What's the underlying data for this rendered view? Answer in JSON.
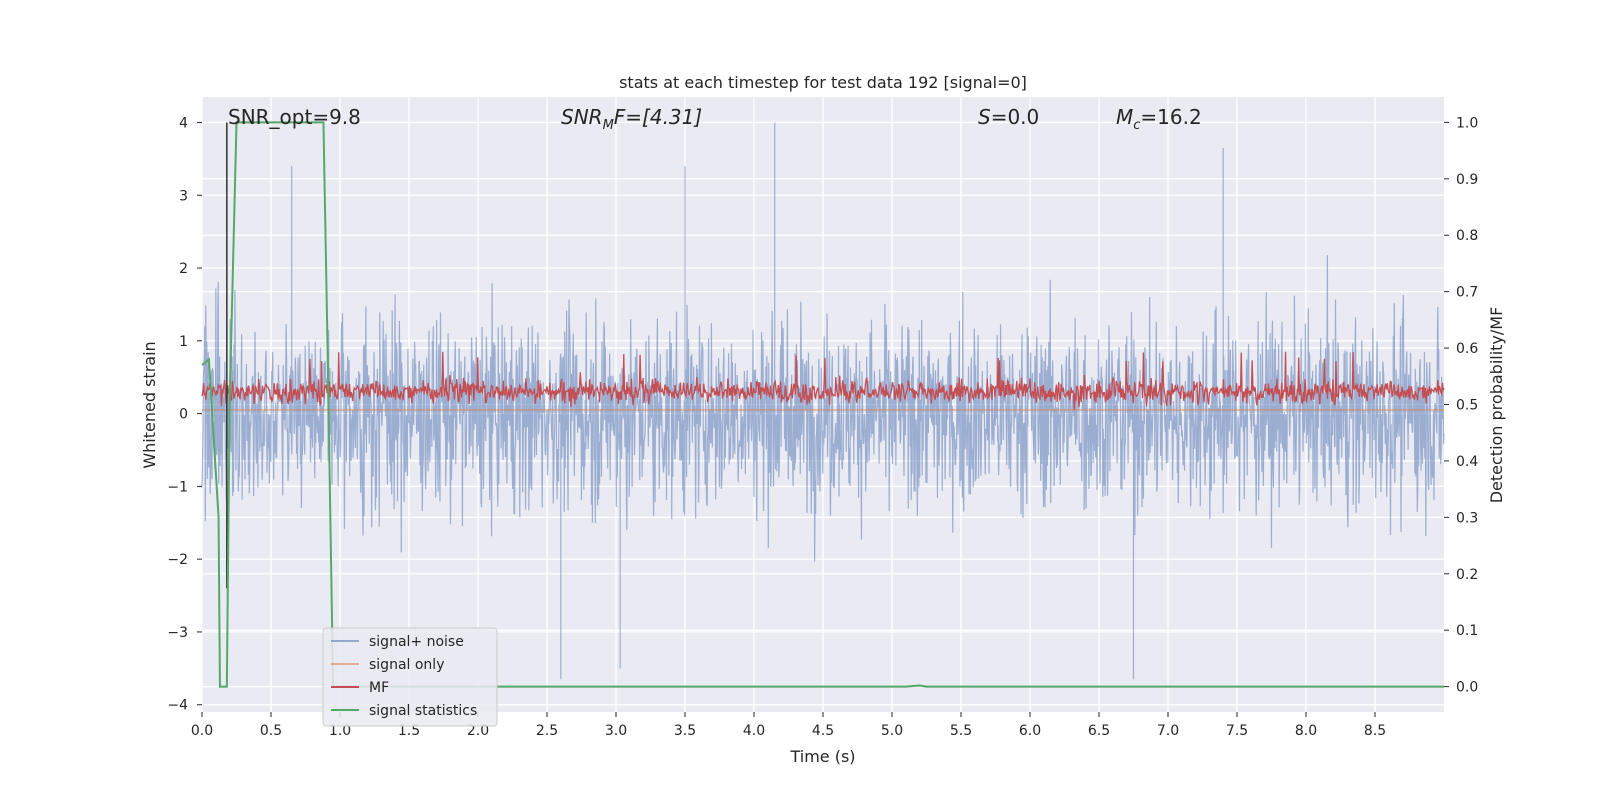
{
  "chart_data": {
    "type": "line",
    "title": "stats at each timestep for test data 192 [signal=0]",
    "xlabel": "Time (s)",
    "ylabel": "Whitened strain",
    "ylabel_right": "Detection probability/MF",
    "xlim": [
      0.0,
      9.0
    ],
    "ylim": [
      -4.1,
      4.35
    ],
    "ylim_right": [
      -0.045,
      1.045
    ],
    "xticks": [
      "0.0",
      "0.5",
      "1.0",
      "1.5",
      "2.0",
      "2.5",
      "3.0",
      "3.5",
      "4.0",
      "4.5",
      "5.0",
      "5.5",
      "6.0",
      "6.5",
      "7.0",
      "7.5",
      "8.0",
      "8.5"
    ],
    "yticks_left": [
      "4",
      "3",
      "2",
      "1",
      "0",
      "−1",
      "−2",
      "−3",
      "−4"
    ],
    "yticks_right": [
      "1.0",
      "0.9",
      "0.8",
      "0.7",
      "0.6",
      "0.5",
      "0.4",
      "0.3",
      "0.2",
      "0.1",
      "0.0"
    ],
    "annotations": {
      "snr_opt": "SNR_opt=9.8",
      "snr_mf_prefix": "SNR",
      "snr_mf_sub": "M",
      "snr_mf_suffix": "F=[4.31]",
      "s_var": "S",
      "s_value": "=0.0",
      "mc_var": "M",
      "mc_sub": "c",
      "mc_value": "=16.2"
    },
    "legend": {
      "placement": "lower-left",
      "entries": [
        "signal+ noise",
        "signal only",
        "MF",
        "signal statistics"
      ]
    },
    "series": [
      {
        "name": "signal+ noise",
        "color": "#4c72b0",
        "description": "whitened strain noise, roughly symmetric between -2.5 and 2.5 with spikes to +4.0 (t≈4.15) and -3.65 (t≈6.75)",
        "peak_max": 4.0,
        "peak_min": -3.65
      },
      {
        "name": "signal only",
        "color": "#dd8452",
        "values_constant": 0.05
      },
      {
        "name": "MF",
        "color": "#c44e52",
        "range": [
          0.0,
          0.85
        ]
      },
      {
        "name": "signal statistics",
        "color": "#55a868",
        "axis": "right",
        "points": [
          [
            0.0,
            0.57
          ],
          [
            0.05,
            0.58
          ],
          [
            0.12,
            0.3
          ],
          [
            0.13,
            0.0
          ],
          [
            0.18,
            0.0
          ],
          [
            0.2,
            0.5
          ],
          [
            0.25,
            1.0
          ],
          [
            0.88,
            1.0
          ],
          [
            0.91,
            0.6
          ],
          [
            0.95,
            0.0
          ],
          [
            5.1,
            0.0
          ],
          [
            5.2,
            0.002
          ],
          [
            5.25,
            0.0
          ],
          [
            9.0,
            0.0
          ]
        ]
      }
    ],
    "vertical_marker_x": 0.18,
    "grid": true
  }
}
